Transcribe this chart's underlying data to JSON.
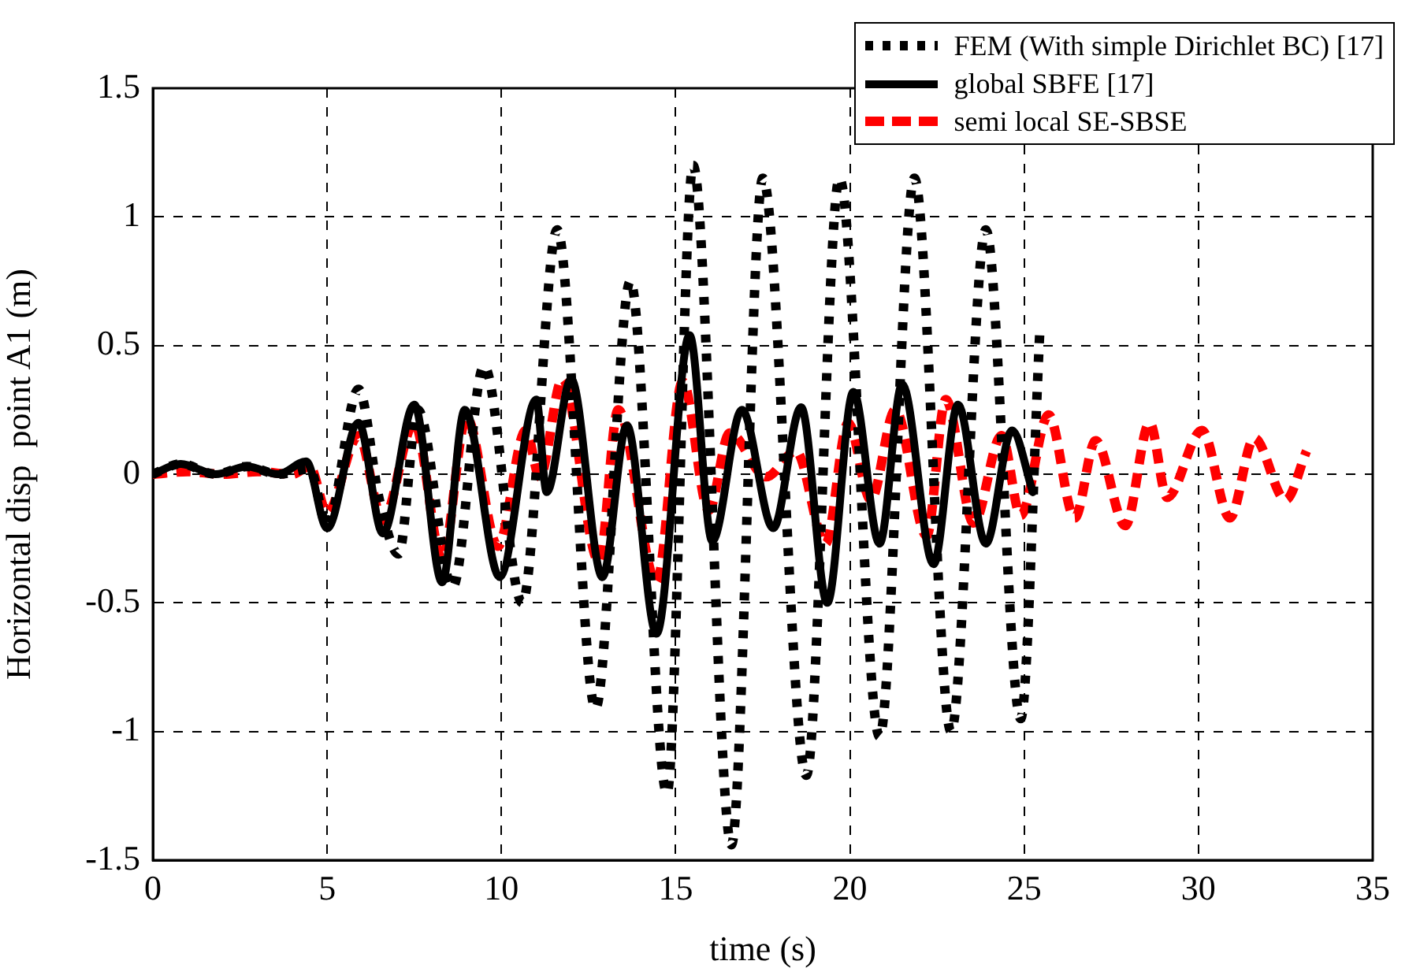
{
  "chart_data": {
    "type": "line",
    "xlabel": "time (s)",
    "ylabel": "Horizontal disp  point A1 (m)",
    "xlim": [
      0,
      35
    ],
    "xticks": [
      0,
      5,
      10,
      15,
      20,
      25,
      30,
      35
    ],
    "ylim": [
      -1.5,
      1.5
    ],
    "yticks": [
      -1.5,
      -1,
      -0.5,
      0,
      0.5,
      1,
      1.5
    ],
    "grid": true,
    "legend": "top right",
    "marker": "none",
    "series": [
      {
        "name": "FEM (With simple Dirichlet BC) [17]",
        "color": "#000000",
        "line_style": "dotted",
        "x": [
          0,
          0.8,
          1.8,
          2.7,
          3.6,
          4.5,
          5.0,
          5.9,
          6.5,
          7.05,
          7.6,
          8.6,
          9.5,
          10.6,
          11.6,
          12.7,
          13.7,
          14.75,
          15.5,
          16.6,
          17.5,
          18.75,
          19.7,
          20.85,
          21.85,
          22.9,
          23.9,
          24.9,
          25.45
        ],
        "values": [
          0,
          0.04,
          0,
          0.03,
          0,
          0.02,
          -0.2,
          0.33,
          -0.1,
          -0.31,
          0.25,
          -0.44,
          0.42,
          -0.5,
          0.95,
          -0.91,
          0.75,
          -1.24,
          1.2,
          -1.44,
          1.15,
          -1.17,
          1.15,
          -1.02,
          1.15,
          -1.0,
          0.95,
          -0.95,
          0.56
        ]
      },
      {
        "name": "global SBFE [17]",
        "color": "#000000",
        "line_style": "solid",
        "x": [
          0,
          0.8,
          1.8,
          2.7,
          3.6,
          4.4,
          5.0,
          5.9,
          6.6,
          7.5,
          8.3,
          8.95,
          9.95,
          11.0,
          11.3,
          12.0,
          12.9,
          13.6,
          14.45,
          15.4,
          16.05,
          16.9,
          17.8,
          18.6,
          19.35,
          20.1,
          20.85,
          21.5,
          22.4,
          23.1,
          23.9,
          24.65,
          25.25
        ],
        "values": [
          0,
          0.04,
          0,
          0.03,
          0,
          0.05,
          -0.21,
          0.2,
          -0.23,
          0.27,
          -0.42,
          0.25,
          -0.4,
          0.29,
          -0.07,
          0.37,
          -0.4,
          0.19,
          -0.62,
          0.54,
          -0.26,
          0.25,
          -0.21,
          0.26,
          -0.5,
          0.32,
          -0.27,
          0.35,
          -0.35,
          0.27,
          -0.27,
          0.17,
          -0.07
        ]
      },
      {
        "name": "semi local SE-SBSE",
        "color": "#ff0000",
        "line_style": "dashed",
        "x": [
          0,
          1,
          2,
          3,
          4,
          4.5,
          5.0,
          5.9,
          6.6,
          7.5,
          8.3,
          9.0,
          9.9,
          10.7,
          11.1,
          11.75,
          12.8,
          13.35,
          14.45,
          15.2,
          15.95,
          16.55,
          17.6,
          18.45,
          19.3,
          19.95,
          20.6,
          21.3,
          22.2,
          22.75,
          23.55,
          24.35,
          24.9,
          25.7,
          26.45,
          27.05,
          27.9,
          28.6,
          29.1,
          30.1,
          30.9,
          31.6,
          32.5,
          33.1
        ],
        "values": [
          0,
          0.01,
          0,
          0.01,
          0,
          0.03,
          -0.15,
          0.15,
          -0.18,
          0.2,
          -0.33,
          0.22,
          -0.28,
          0.17,
          -0.01,
          0.37,
          -0.34,
          0.25,
          -0.42,
          0.36,
          -0.14,
          0.16,
          -0.01,
          0.09,
          -0.27,
          0.2,
          -0.1,
          0.25,
          -0.24,
          0.29,
          -0.19,
          0.15,
          -0.16,
          0.23,
          -0.17,
          0.13,
          -0.2,
          0.2,
          -0.09,
          0.17,
          -0.17,
          0.14,
          -0.1,
          0.09
        ]
      }
    ]
  }
}
